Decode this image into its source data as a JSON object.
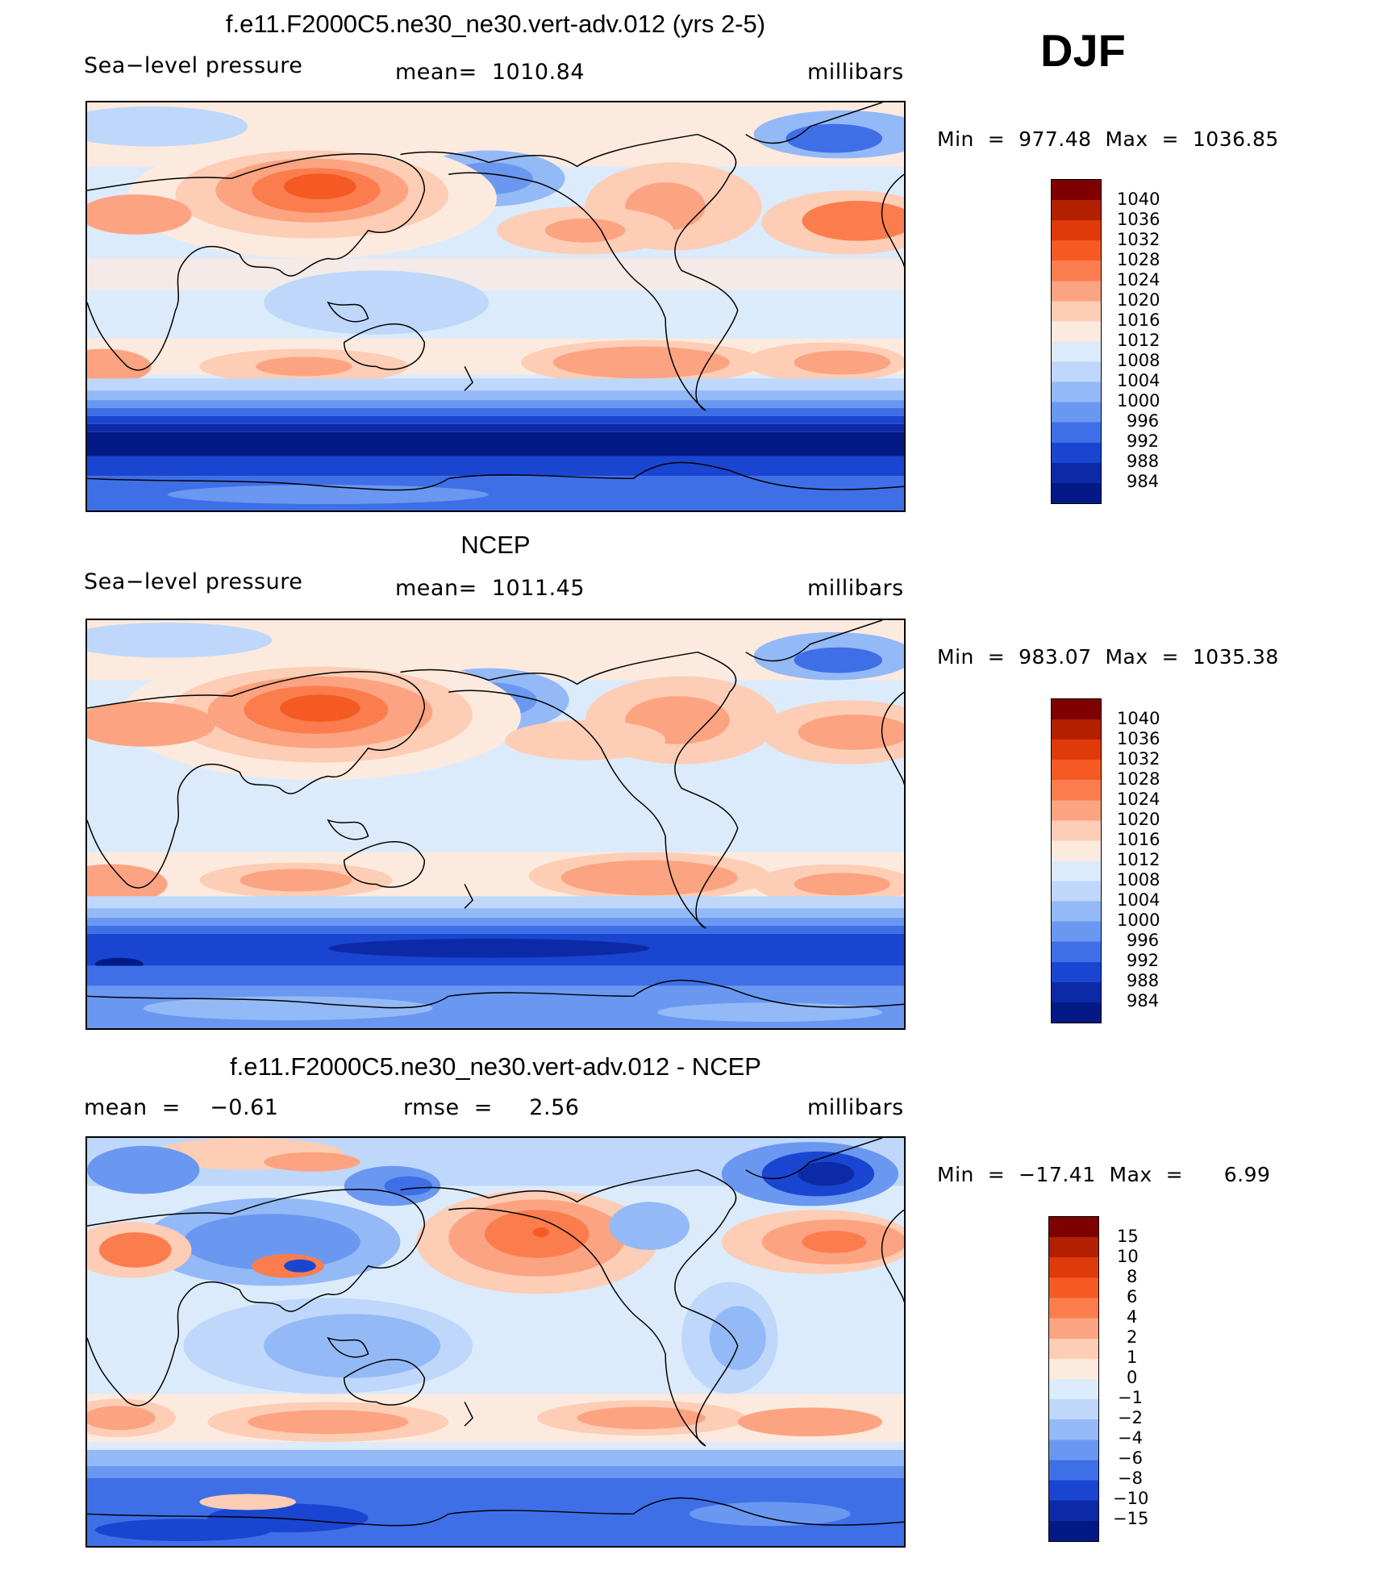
{
  "season": "DJF",
  "panels": [
    {
      "title": "f.e11.F2000C5.ne30_ne30.vert-adv.012 (yrs 2-5)",
      "left_text": "Sea−level pressure",
      "center_text": "mean=  1010.84",
      "right_text": "millibars",
      "minmax": "Min  =  977.48  Max  =  1036.85",
      "legend_labels": [
        "1040",
        "1036",
        "1032",
        "1028",
        "1024",
        "1020",
        "1016",
        "1012",
        "1008",
        "1004",
        "1000",
        "996",
        "992",
        "988",
        "984"
      ]
    },
    {
      "title": "NCEP",
      "left_text": "Sea−level pressure",
      "center_text": "mean=  1011.45",
      "right_text": "millibars",
      "minmax": "Min  =  983.07  Max  =  1035.38",
      "legend_labels": [
        "1040",
        "1036",
        "1032",
        "1028",
        "1024",
        "1020",
        "1016",
        "1012",
        "1008",
        "1004",
        "1000",
        "996",
        "992",
        "988",
        "984"
      ]
    },
    {
      "title": "f.e11.F2000C5.ne30_ne30.vert-adv.012 - NCEP",
      "left_text": "mean  =    −0.61",
      "center_text": "rmse  =     2.56",
      "right_text": "millibars",
      "minmax": "Min  =  −17.41  Max  =      6.99",
      "legend_labels": [
        "15",
        "10",
        "8",
        "6",
        "4",
        "2",
        "1",
        "0",
        "−1",
        "−2",
        "−4",
        "−6",
        "−8",
        "−10",
        "−15"
      ]
    }
  ],
  "colors": {
    "scale": [
      "#7f0000",
      "#b32000",
      "#de3a0a",
      "#f55a23",
      "#fb7d4e",
      "#fca382",
      "#fdcdb5",
      "#fdeade",
      "#dcebfb",
      "#bed7fb",
      "#94b9f7",
      "#6a98f1",
      "#3f6fe7",
      "#1a45d1",
      "#0d2aa6",
      "#031a86"
    ],
    "coast": "#000000"
  }
}
